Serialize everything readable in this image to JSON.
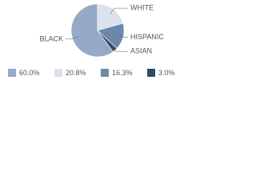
{
  "chart_data": {
    "type": "pie",
    "categories": [
      "BLACK",
      "WHITE",
      "HISPANIC",
      "ASIAN"
    ],
    "values": [
      60.0,
      20.8,
      16.3,
      3.0
    ],
    "value_labels": [
      "60.0%",
      "20.8%",
      "16.3%",
      "3.0%"
    ],
    "colors": [
      "#94aac6",
      "#dbe2ec",
      "#6c88ad",
      "#2b4a6c"
    ]
  }
}
